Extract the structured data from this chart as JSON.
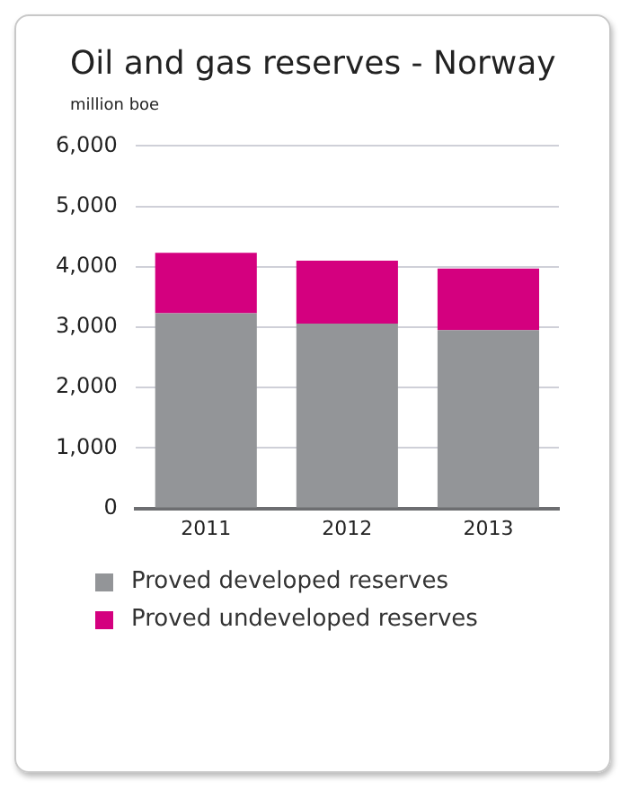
{
  "chart_data": {
    "type": "bar",
    "title": "Oil and gas reserves - Norway",
    "ylabel": "million boe",
    "categories": [
      "2011",
      "2012",
      "2013"
    ],
    "series": [
      {
        "name": "Proved developed reserves",
        "color": "#939598",
        "values": [
          3230,
          3060,
          2950
        ]
      },
      {
        "name": "Proved undeveloped reserves",
        "color": "#d4007f",
        "values": [
          1000,
          1040,
          1020
        ]
      }
    ],
    "stacked": true,
    "ylim": [
      0,
      6000
    ],
    "yticks": [
      0,
      {
        "value": 1000,
        "label": "1,000"
      },
      {
        "value": 2000,
        "label": "2,000"
      },
      {
        "value": 3000,
        "label": "3,000"
      },
      {
        "value": 4000,
        "label": "4,000"
      },
      {
        "value": 5000,
        "label": "5,000"
      },
      {
        "value": 6000,
        "label": "6,000"
      }
    ],
    "grid": "y",
    "legend": "bottom"
  }
}
